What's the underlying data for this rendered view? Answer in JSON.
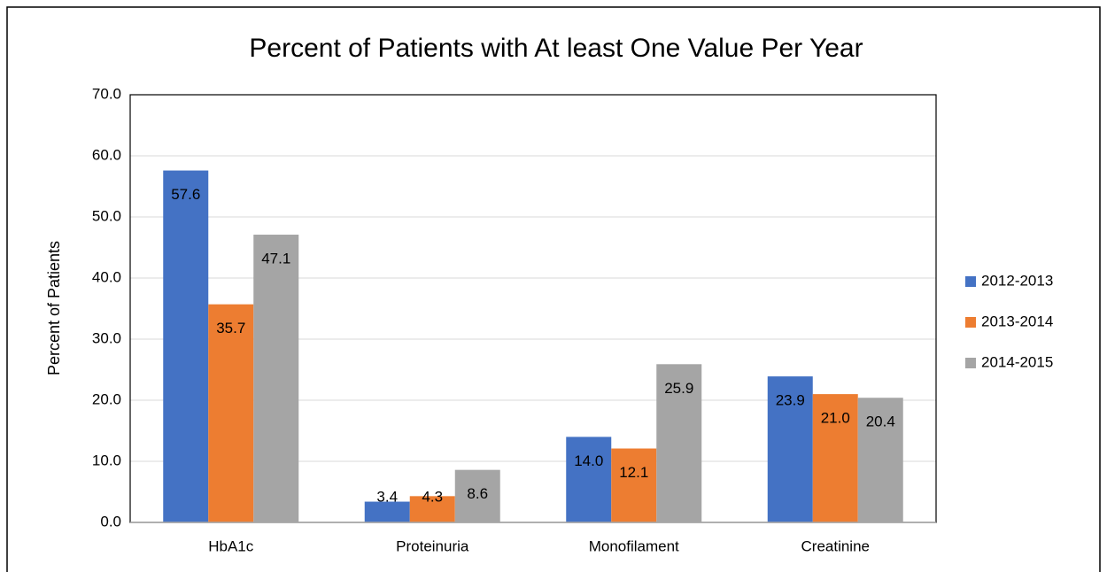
{
  "chart_data": {
    "type": "bar",
    "title": "Percent of Patients with At least One Value Per Year",
    "ylabel": "Percent of Patients",
    "categories": [
      "HbA1c",
      "Proteinuria",
      "Monofilament",
      "Creatinine"
    ],
    "series": [
      {
        "name": "2012-2013",
        "color": "#4472c4",
        "values": [
          57.6,
          3.4,
          14.0,
          23.9
        ],
        "value_labels": [
          "57.6",
          "3.4",
          "14.0",
          "23.9"
        ]
      },
      {
        "name": "2013-2014",
        "color": "#ed7d31",
        "values": [
          35.7,
          4.3,
          12.1,
          21.0
        ],
        "value_labels": [
          "35.7",
          "4.3",
          "12.1",
          "21.0"
        ]
      },
      {
        "name": "2014-2015",
        "color": "#a5a5a5",
        "values": [
          47.1,
          8.6,
          25.9,
          20.4
        ],
        "value_labels": [
          "47.1",
          "8.6",
          "25.9",
          "20.4"
        ]
      }
    ],
    "ylim": [
      0,
      70
    ],
    "yticks": [
      {
        "value": 0,
        "label": "0.0"
      },
      {
        "value": 10,
        "label": "10.0"
      },
      {
        "value": 20,
        "label": "20.0"
      },
      {
        "value": 30,
        "label": "30.0"
      },
      {
        "value": 40,
        "label": "40.0"
      },
      {
        "value": 50,
        "label": "50.0"
      },
      {
        "value": 60,
        "label": "60.0"
      },
      {
        "value": 70,
        "label": "70.0"
      }
    ],
    "grid": true,
    "legend": "right"
  }
}
